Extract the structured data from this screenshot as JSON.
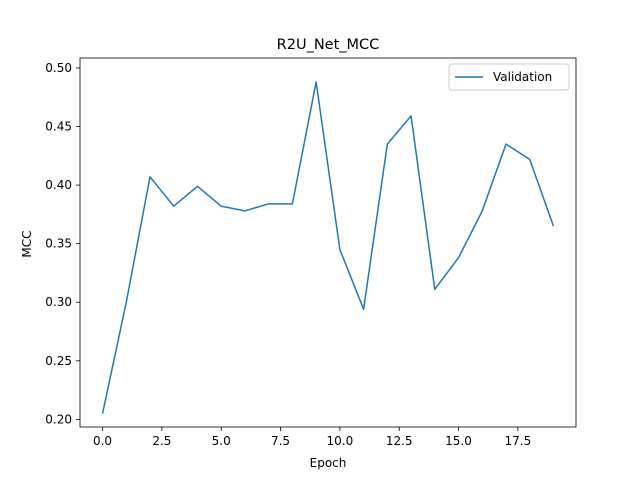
{
  "chart_data": {
    "type": "line",
    "title": "R2U_Net_MCC",
    "xlabel": "Epoch",
    "ylabel": "MCC",
    "xlim": [
      -0.95,
      19.95
    ],
    "ylim": [
      0.1935,
      0.5085
    ],
    "xticks": [
      0.0,
      2.5,
      5.0,
      7.5,
      10.0,
      12.5,
      15.0,
      17.5
    ],
    "xtick_labels": [
      "0.0",
      "2.5",
      "5.0",
      "7.5",
      "10.0",
      "12.5",
      "15.0",
      "17.5"
    ],
    "yticks": [
      0.2,
      0.25,
      0.3,
      0.35,
      0.4,
      0.45,
      0.5
    ],
    "ytick_labels": [
      "0.20",
      "0.25",
      "0.30",
      "0.35",
      "0.40",
      "0.45",
      "0.50"
    ],
    "grid": false,
    "legend": "top-right",
    "series": [
      {
        "name": "Validation",
        "color": "#1f77b4",
        "x": [
          0,
          1,
          2,
          3,
          4,
          5,
          6,
          7,
          8,
          9,
          10,
          11,
          12,
          13,
          14,
          15,
          16,
          17,
          18,
          19
        ],
        "y": [
          0.205,
          0.3,
          0.407,
          0.382,
          0.399,
          0.382,
          0.378,
          0.384,
          0.384,
          0.488,
          0.345,
          0.294,
          0.435,
          0.459,
          0.311,
          0.338,
          0.378,
          0.435,
          0.422,
          0.365
        ]
      }
    ]
  }
}
